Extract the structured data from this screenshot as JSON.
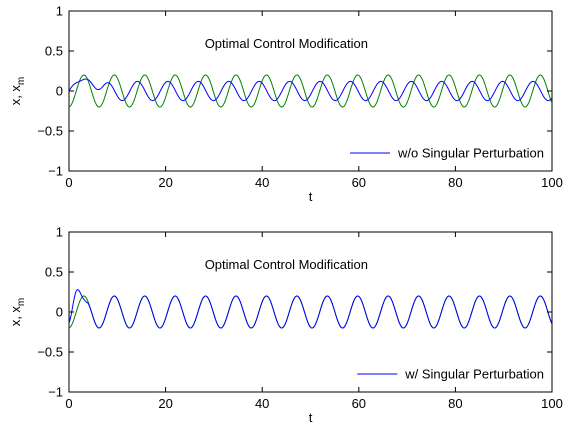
{
  "chart_data": [
    {
      "type": "line",
      "title": "Optimal Control Modification",
      "xlabel": "t",
      "ylabel": "x, x",
      "ylabel_sub": "m",
      "xlim": [
        0,
        100
      ],
      "ylim": [
        -1,
        1
      ],
      "xticks": [
        "0",
        "20",
        "40",
        "60",
        "80",
        "100"
      ],
      "yticks": [
        "−1",
        "−0.5",
        "0",
        "0.5",
        "1"
      ],
      "legend": {
        "label": "w/o Singular Perturbation",
        "placement": "bottom-right"
      },
      "grid": false,
      "series": [
        {
          "name": "w/o Singular Perturbation",
          "color": "#0000ff",
          "signal": {
            "amplitude": 0.12,
            "period": 6.3,
            "phase_shift": 0,
            "onset_peak": 0.15,
            "onset_time": 3.5
          }
        },
        {
          "color": "#008000",
          "signal": {
            "amplitude": 0.2,
            "period": 6.3,
            "phase_shift": 1.5
          }
        }
      ]
    },
    {
      "type": "line",
      "title": "Optimal Control Modification",
      "xlabel": "t",
      "ylabel": "x, x",
      "ylabel_sub": "m",
      "xlim": [
        0,
        100
      ],
      "ylim": [
        -1,
        1
      ],
      "xticks": [
        "0",
        "20",
        "40",
        "60",
        "80",
        "100"
      ],
      "yticks": [
        "−1",
        "−0.5",
        "0",
        "0.5",
        "1"
      ],
      "legend": {
        "label": "w/ Singular Perturbation",
        "placement": "bottom-right"
      },
      "grid": false,
      "series": [
        {
          "name": "w/ Singular Perturbation",
          "color": "#0000ff",
          "signal": {
            "amplitude": 0.2,
            "period": 6.3,
            "phase_shift": 1.5,
            "onset_peak": 0.28,
            "onset_time": 1.8
          }
        },
        {
          "color": "#008000",
          "signal": {
            "amplitude": 0.2,
            "period": 6.3,
            "phase_shift": 1.5
          }
        }
      ]
    }
  ]
}
